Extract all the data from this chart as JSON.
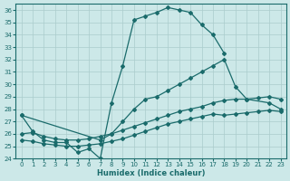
{
  "xlabel": "Humidex (Indice chaleur)",
  "ylabel": "",
  "xlim": [
    -0.5,
    23.5
  ],
  "ylim": [
    24,
    36.5
  ],
  "yticks": [
    24,
    25,
    26,
    27,
    28,
    29,
    30,
    31,
    32,
    33,
    34,
    35,
    36
  ],
  "xticks": [
    0,
    1,
    2,
    3,
    4,
    5,
    6,
    7,
    8,
    9,
    10,
    11,
    12,
    13,
    14,
    15,
    16,
    17,
    18,
    19,
    20,
    21,
    22,
    23
  ],
  "bg_color": "#cce8e8",
  "line_color": "#1a6b6b",
  "grid_color": "#aacccc",
  "line1_x": [
    0,
    1,
    2,
    3,
    4,
    5,
    6,
    7,
    8,
    9,
    10,
    11,
    12,
    13,
    14,
    15,
    16,
    17,
    18
  ],
  "line1_y": [
    27.5,
    26.2,
    25.5,
    25.3,
    25.3,
    24.5,
    24.8,
    24.0,
    28.5,
    31.5,
    35.2,
    35.5,
    35.8,
    36.2,
    36.0,
    35.8,
    34.8,
    34.0,
    32.5
  ],
  "line2_x": [
    0,
    7,
    8,
    9,
    10,
    11,
    12,
    13,
    14,
    15,
    16,
    17,
    18,
    19,
    20,
    22,
    23
  ],
  "line2_y": [
    27.5,
    25.5,
    26.0,
    27.0,
    28.0,
    28.8,
    29.0,
    29.5,
    30.0,
    30.5,
    31.0,
    31.5,
    32.0,
    29.8,
    28.8,
    28.5,
    28.0
  ],
  "line3_x": [
    0,
    1,
    2,
    3,
    4,
    5,
    6,
    7,
    8,
    9,
    10,
    11,
    12,
    13,
    14,
    15,
    16,
    17,
    18,
    19,
    20,
    21,
    22,
    23
  ],
  "line3_y": [
    26.0,
    26.1,
    25.8,
    25.6,
    25.5,
    25.5,
    25.6,
    25.8,
    26.0,
    26.3,
    26.6,
    26.9,
    27.2,
    27.5,
    27.8,
    28.0,
    28.2,
    28.5,
    28.7,
    28.8,
    28.8,
    28.9,
    29.0,
    28.8
  ],
  "line4_x": [
    0,
    1,
    2,
    3,
    4,
    5,
    6,
    7,
    8,
    9,
    10,
    11,
    12,
    13,
    14,
    15,
    16,
    17,
    18,
    19,
    20,
    21,
    22,
    23
  ],
  "line4_y": [
    25.5,
    25.4,
    25.2,
    25.1,
    25.0,
    25.0,
    25.1,
    25.2,
    25.4,
    25.6,
    25.9,
    26.2,
    26.5,
    26.8,
    27.0,
    27.2,
    27.4,
    27.6,
    27.5,
    27.6,
    27.7,
    27.8,
    27.9,
    27.8
  ]
}
